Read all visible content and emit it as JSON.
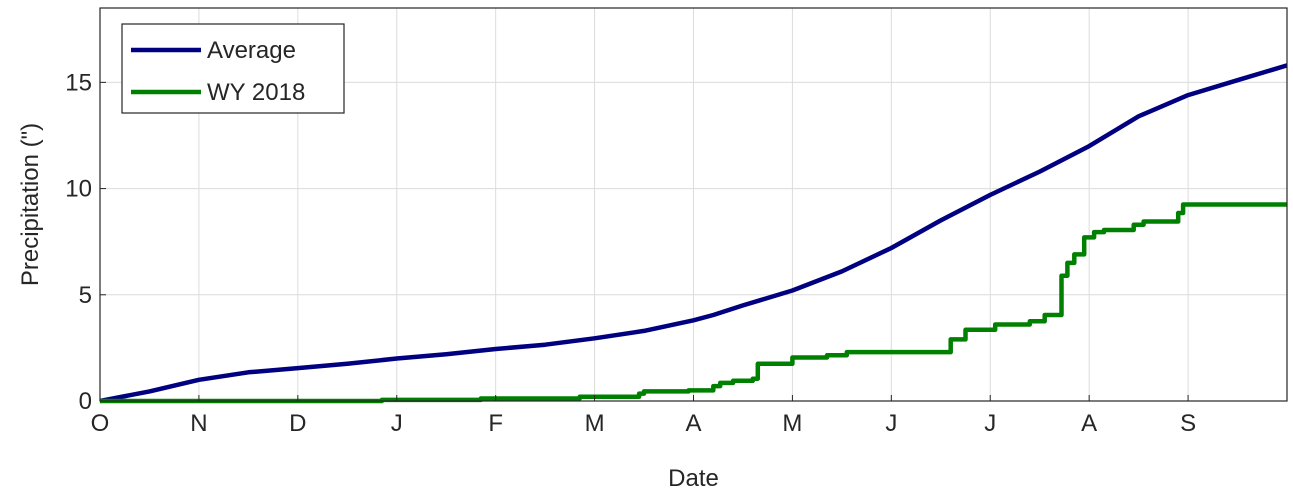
{
  "chart_data": {
    "type": "line",
    "title": "",
    "xlabel": "Date",
    "ylabel": "Precipitation (\")",
    "x_ticks": [
      "O",
      "N",
      "D",
      "J",
      "F",
      "M",
      "A",
      "M",
      "J",
      "J",
      "A",
      "S"
    ],
    "x_unit": "month of water year (0 = Oct 1)",
    "xlim": [
      0,
      12
    ],
    "ylim": [
      0,
      18.5
    ],
    "y_ticks": [
      0,
      5,
      10,
      15
    ],
    "grid": true,
    "legend_position": "top-left",
    "series": [
      {
        "name": "Average",
        "color": "#000080",
        "x": [
          0,
          0.5,
          1,
          1.5,
          2,
          2.5,
          3,
          3.5,
          4,
          4.5,
          5,
          5.5,
          6,
          6.2,
          6.5,
          7,
          7.5,
          8,
          8.5,
          9,
          9.5,
          10,
          10.5,
          11,
          11.5,
          12
        ],
        "y": [
          0.0,
          0.45,
          1.0,
          1.35,
          1.55,
          1.75,
          2.0,
          2.2,
          2.45,
          2.65,
          2.95,
          3.3,
          3.8,
          4.05,
          4.5,
          5.2,
          6.1,
          7.2,
          8.5,
          9.7,
          10.8,
          12.0,
          13.4,
          14.4,
          15.1,
          15.8
        ]
      },
      {
        "name": "WY 2018",
        "color": "#008000",
        "x": [
          0,
          2.85,
          2.85,
          3.85,
          3.85,
          4.85,
          4.85,
          5.45,
          5.45,
          5.5,
          5.5,
          5.95,
          5.95,
          6.2,
          6.2,
          6.27,
          6.27,
          6.4,
          6.4,
          6.6,
          6.6,
          6.65,
          6.65,
          7.0,
          7.0,
          7.35,
          7.35,
          7.55,
          7.55,
          8.6,
          8.6,
          8.75,
          8.75,
          9.05,
          9.05,
          9.4,
          9.4,
          9.55,
          9.55,
          9.7,
          9.7,
          9.72,
          9.72,
          9.78,
          9.78,
          9.85,
          9.85,
          9.95,
          9.95,
          10.05,
          10.05,
          10.15,
          10.15,
          10.45,
          10.45,
          10.55,
          10.55,
          10.9,
          10.9,
          10.95,
          10.95,
          12.0
        ],
        "y": [
          0.0,
          0.0,
          0.05,
          0.05,
          0.12,
          0.12,
          0.2,
          0.2,
          0.35,
          0.35,
          0.45,
          0.45,
          0.5,
          0.5,
          0.7,
          0.7,
          0.85,
          0.85,
          0.95,
          0.95,
          1.05,
          1.05,
          1.75,
          1.75,
          2.05,
          2.05,
          2.15,
          2.15,
          2.3,
          2.3,
          2.9,
          2.9,
          3.35,
          3.35,
          3.6,
          3.6,
          3.75,
          3.75,
          4.05,
          4.05,
          4.05,
          4.05,
          5.9,
          5.9,
          6.5,
          6.5,
          6.9,
          6.9,
          7.7,
          7.7,
          7.95,
          7.95,
          8.05,
          8.05,
          8.3,
          8.3,
          8.45,
          8.45,
          8.85,
          8.85,
          9.25,
          9.25
        ]
      }
    ]
  }
}
